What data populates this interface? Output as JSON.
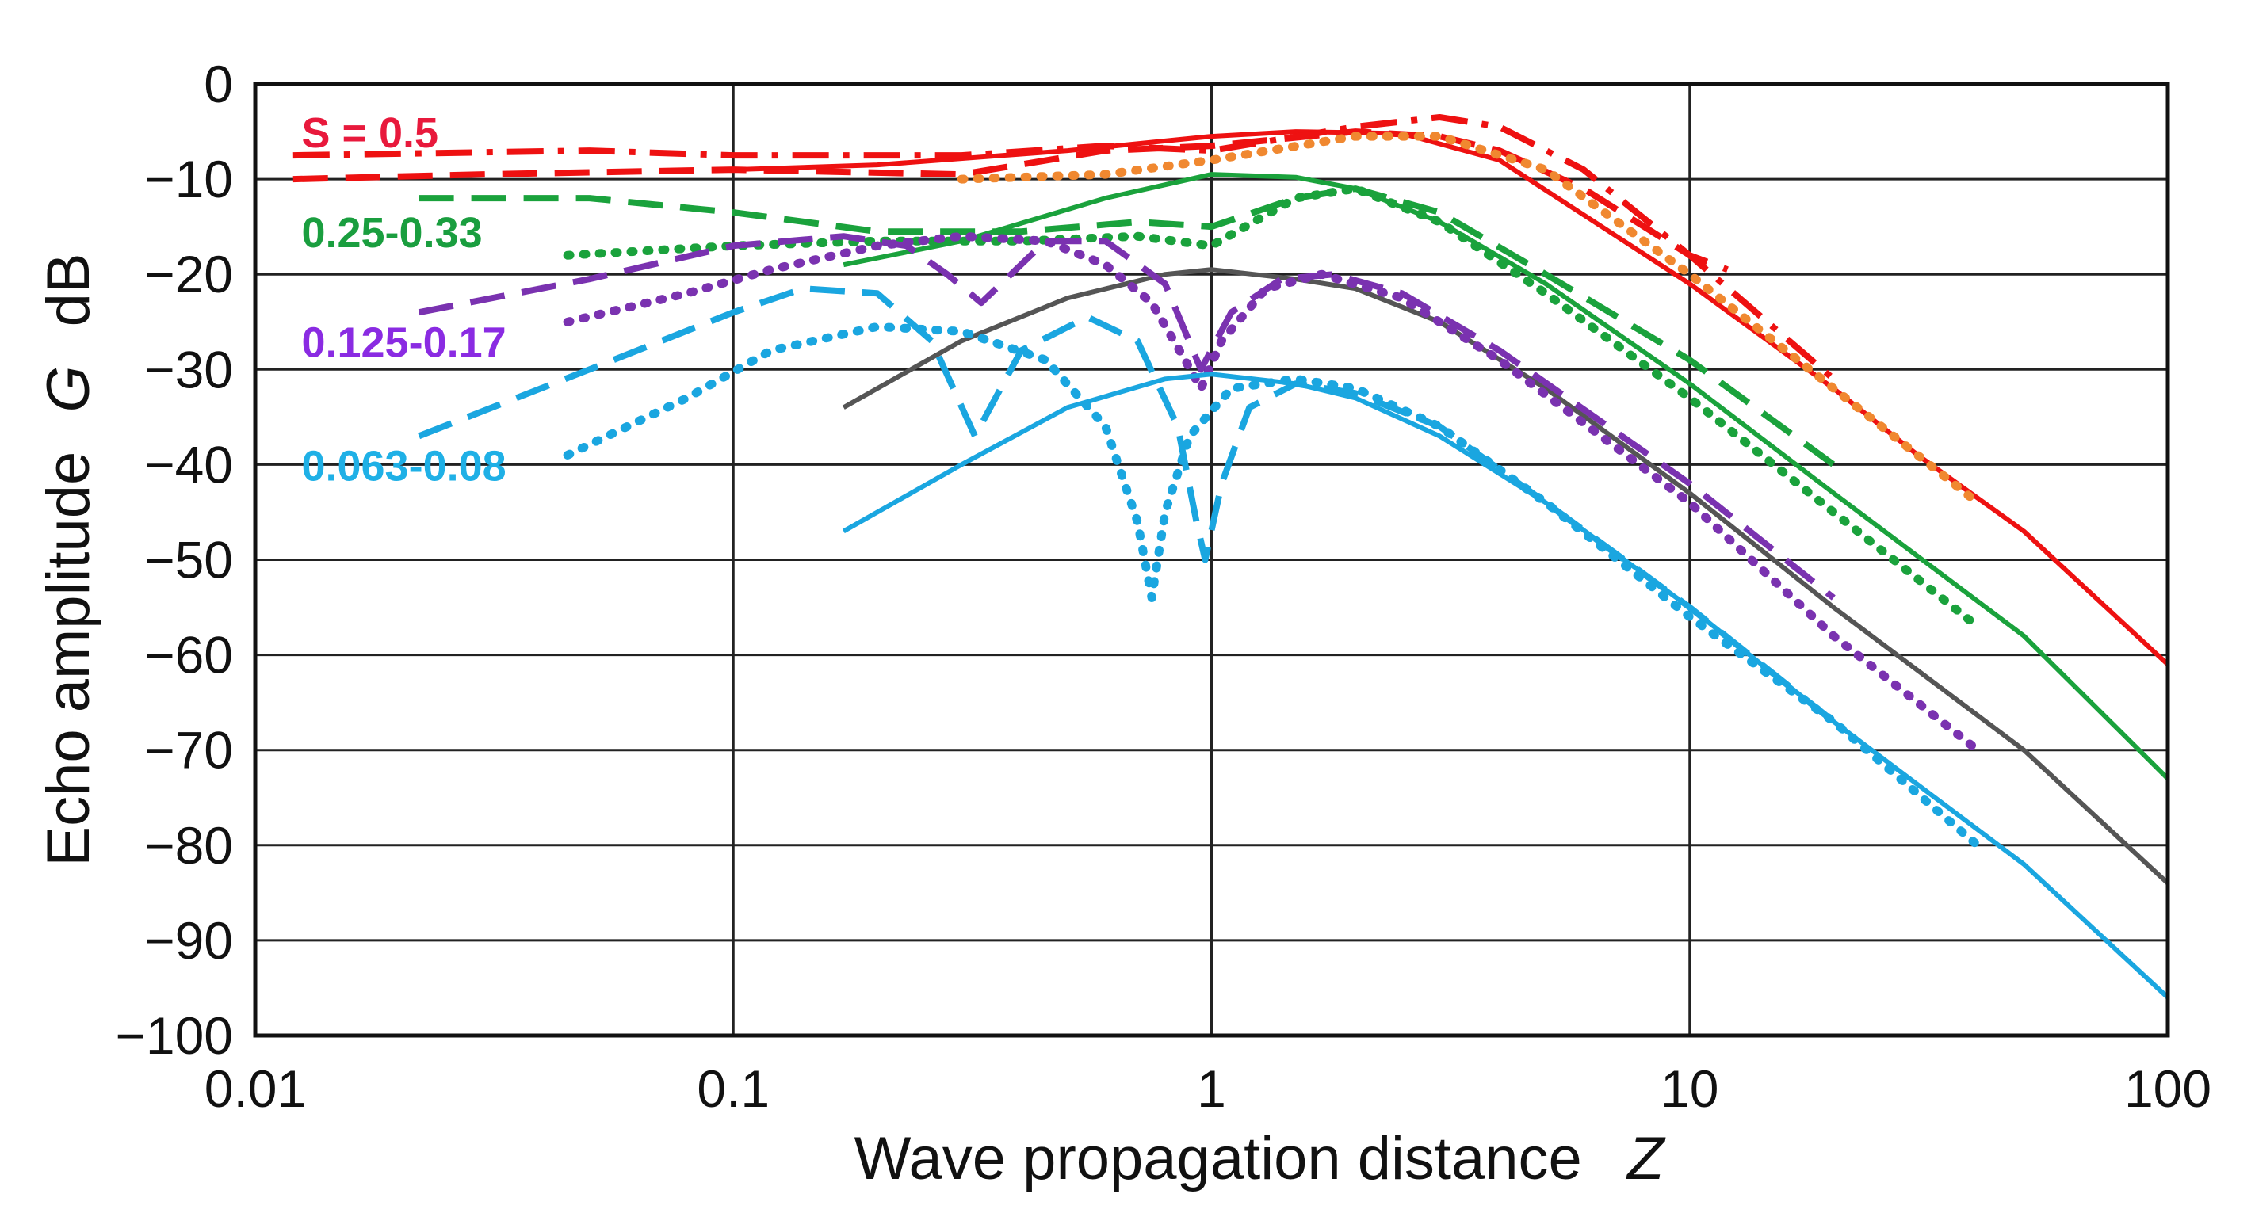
{
  "chart_data": {
    "type": "line",
    "title": "",
    "xlabel": "Wave propagation distance",
    "xlabel_symbol": "Z",
    "ylabel": "Echo amplitude",
    "ylabel_symbol": "G",
    "ylabel_unit": "dB",
    "xscale": "log",
    "xlim": [
      0.01,
      100
    ],
    "ylim": [
      -100,
      0
    ],
    "xticks": [
      0.01,
      0.1,
      1,
      10,
      100
    ],
    "xtick_labels": [
      "0.01",
      "0.1",
      "1",
      "10",
      "100"
    ],
    "yticks": [
      0,
      -10,
      -20,
      -30,
      -40,
      -50,
      -60,
      -70,
      -80,
      -90,
      -100
    ],
    "ytick_labels": [
      "0",
      "−10",
      "−20",
      "−30",
      "−40",
      "−50",
      "−60",
      "−70",
      "−80",
      "−90",
      "−100"
    ],
    "grid": true,
    "annotations": [
      {
        "text": "S = 0.5",
        "color": "#e8193c",
        "x": 0.0125,
        "y": -5
      },
      {
        "text": "0.25-0.33",
        "color": "#1a9e3f",
        "x": 0.0125,
        "y": -15.5
      },
      {
        "text": "0.125-0.17",
        "color": "#8a2be2",
        "x": 0.0125,
        "y": -27
      },
      {
        "text": "0.063-0.08",
        "color": "#1fb0e6",
        "x": 0.0125,
        "y": -40
      }
    ],
    "series": [
      {
        "name": "S=0.5 solid",
        "color": "#ee1111",
        "style": "solid",
        "x": [
          0.1,
          0.2,
          0.5,
          1,
          1.5,
          2.5,
          4,
          10,
          20,
          30,
          50,
          100
        ],
        "y": [
          -9,
          -8.5,
          -7,
          -5.5,
          -5,
          -5.2,
          -8,
          -21,
          -32,
          -39,
          -47,
          -61
        ]
      },
      {
        "name": "S=0.5 dashed",
        "color": "#ee1111",
        "style": "dashed",
        "x": [
          0.012,
          0.03,
          0.1,
          0.3,
          0.6,
          1,
          2,
          3,
          4,
          6,
          10,
          12
        ],
        "y": [
          -10,
          -9.5,
          -9,
          -9.5,
          -7,
          -6.5,
          -5,
          -5.5,
          -7,
          -11,
          -18,
          -19.5
        ]
      },
      {
        "name": "S=0.5 dash-dot",
        "color": "#ee1111",
        "style": "dashdot",
        "x": [
          0.012,
          0.05,
          0.1,
          0.3,
          0.6,
          1,
          2,
          3,
          4,
          6,
          10,
          20
        ],
        "y": [
          -7.5,
          -7,
          -7.5,
          -7.5,
          -6.5,
          -7,
          -4.5,
          -3.5,
          -4.5,
          -9,
          -18,
          -31
        ]
      },
      {
        "name": "S=0.5 dotted",
        "color": "#f08830",
        "style": "dotted",
        "x": [
          0.3,
          0.6,
          1,
          2,
          3,
          5,
          10,
          20,
          40
        ],
        "y": [
          -10,
          -9.5,
          -8,
          -5.5,
          -5.5,
          -9,
          -20,
          -32,
          -44
        ]
      },
      {
        "name": "S=0.25-0.33 solid",
        "color": "#1aa23c",
        "style": "solid",
        "x": [
          0.17,
          0.3,
          0.6,
          1,
          1.5,
          2,
          3,
          5,
          10,
          20,
          50,
          100
        ],
        "y": [
          -19,
          -16.5,
          -12,
          -9.5,
          -9.8,
          -11,
          -14.5,
          -21,
          -31.5,
          -43,
          -58,
          -73
        ]
      },
      {
        "name": "S=0.25-0.33 dashed",
        "color": "#1aa23c",
        "style": "dashed",
        "x": [
          0.022,
          0.05,
          0.1,
          0.2,
          0.4,
          0.7,
          1,
          1.5,
          2,
          3,
          5,
          10,
          20
        ],
        "y": [
          -12,
          -12,
          -13.5,
          -15.5,
          -15.5,
          -14.5,
          -15,
          -12,
          -11,
          -13.5,
          -20,
          -29,
          -40
        ]
      },
      {
        "name": "S=0.25-0.33 dotted",
        "color": "#1aa23c",
        "style": "dotted",
        "x": [
          0.045,
          0.1,
          0.2,
          0.4,
          0.7,
          1,
          1.5,
          2,
          3,
          5,
          10,
          20,
          40
        ],
        "y": [
          -18,
          -17,
          -16.5,
          -16.5,
          -16,
          -17,
          -12,
          -11,
          -14.5,
          -22,
          -33,
          -45,
          -57
        ]
      },
      {
        "name": "S=0.125-0.17 solid (gray)",
        "color": "#555555",
        "style": "solid",
        "x": [
          0.17,
          0.3,
          0.5,
          0.8,
          1,
          1.5,
          2,
          3,
          5,
          10,
          20,
          50,
          100
        ],
        "y": [
          -34,
          -27,
          -22.5,
          -20,
          -19.5,
          -20.5,
          -21.5,
          -25,
          -32,
          -43,
          -55,
          -70,
          -84
        ]
      },
      {
        "name": "S=0.125-0.17 dashed",
        "color": "#7a32b0",
        "style": "dashed",
        "x": [
          0.022,
          0.05,
          0.1,
          0.17,
          0.23,
          0.28,
          0.33,
          0.45,
          0.6,
          0.8,
          0.95,
          1.1,
          1.4,
          1.8,
          2.5,
          4,
          10,
          20
        ],
        "y": [
          -24,
          -20.5,
          -17,
          -16,
          -17,
          -20,
          -23,
          -16.5,
          -16.5,
          -21,
          -30,
          -24,
          -20.5,
          -20,
          -22,
          -28,
          -42,
          -54
        ]
      },
      {
        "name": "S=0.125-0.17 dotted",
        "color": "#7a32b0",
        "style": "dotted",
        "x": [
          0.045,
          0.08,
          0.12,
          0.2,
          0.3,
          0.45,
          0.6,
          0.75,
          0.88,
          0.95,
          1.05,
          1.3,
          1.7,
          2.5,
          4,
          10,
          20,
          40
        ],
        "y": [
          -25,
          -22,
          -19.5,
          -17,
          -16,
          -16.5,
          -19,
          -23,
          -29,
          -32,
          -27,
          -21.5,
          -20,
          -22.5,
          -29,
          -44,
          -58,
          -70
        ]
      },
      {
        "name": "S=0.063-0.08 solid",
        "color": "#1aa6e0",
        "style": "solid",
        "x": [
          0.17,
          0.3,
          0.5,
          0.8,
          1,
          1.5,
          2,
          3,
          5,
          10,
          20,
          50,
          100
        ],
        "y": [
          -47,
          -40,
          -34,
          -31,
          -30.5,
          -31.5,
          -33,
          -37,
          -44,
          -55,
          -67,
          -82,
          -96
        ]
      },
      {
        "name": "S=0.063-0.08 dashed",
        "color": "#1aa6e0",
        "style": "dashed",
        "x": [
          0.022,
          0.05,
          0.1,
          0.14,
          0.2,
          0.26,
          0.32,
          0.4,
          0.55,
          0.7,
          0.85,
          0.93,
          0.97,
          1.05,
          1.2,
          1.5,
          2,
          3,
          5,
          10,
          20
        ],
        "y": [
          -37,
          -30,
          -24,
          -21.5,
          -22,
          -27,
          -37,
          -28,
          -24.5,
          -27,
          -36,
          -46,
          -50,
          -42,
          -34,
          -31.5,
          -32.5,
          -36,
          -44,
          -55,
          -67
        ]
      },
      {
        "name": "S=0.063-0.08 dotted",
        "color": "#1aa6e0",
        "style": "dotted",
        "x": [
          0.045,
          0.08,
          0.12,
          0.2,
          0.3,
          0.45,
          0.6,
          0.7,
          0.75,
          0.8,
          0.9,
          1.1,
          1.5,
          2,
          3,
          5,
          10,
          20,
          40
        ],
        "y": [
          -39,
          -33,
          -28,
          -25.5,
          -26,
          -29,
          -36,
          -46,
          -54,
          -45,
          -37,
          -32,
          -31,
          -32,
          -36,
          -44,
          -56,
          -67,
          -80
        ]
      }
    ]
  }
}
